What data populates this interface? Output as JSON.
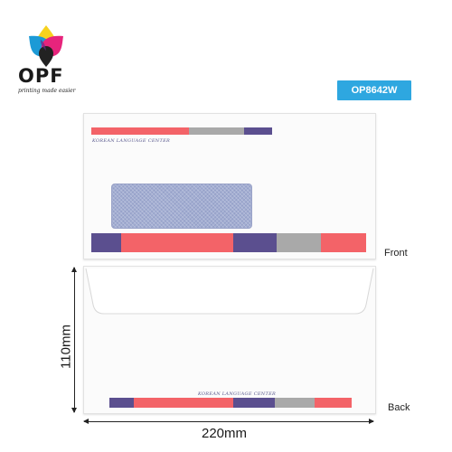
{
  "brand": {
    "name": "OPF",
    "tagline": "printing made easier",
    "icon": "color-drops-logo"
  },
  "product": {
    "code": "OP8642W"
  },
  "envelope": {
    "company_text": "KOREAN LANGUAGE CENTER",
    "front_label": "Front",
    "back_label": "Back",
    "width": "220mm",
    "height": "110mm"
  },
  "colors": {
    "coral": "#f36368",
    "gray": "#a9a9a9",
    "purple": "#5b4f8f",
    "badge": "#2ea7e0"
  }
}
